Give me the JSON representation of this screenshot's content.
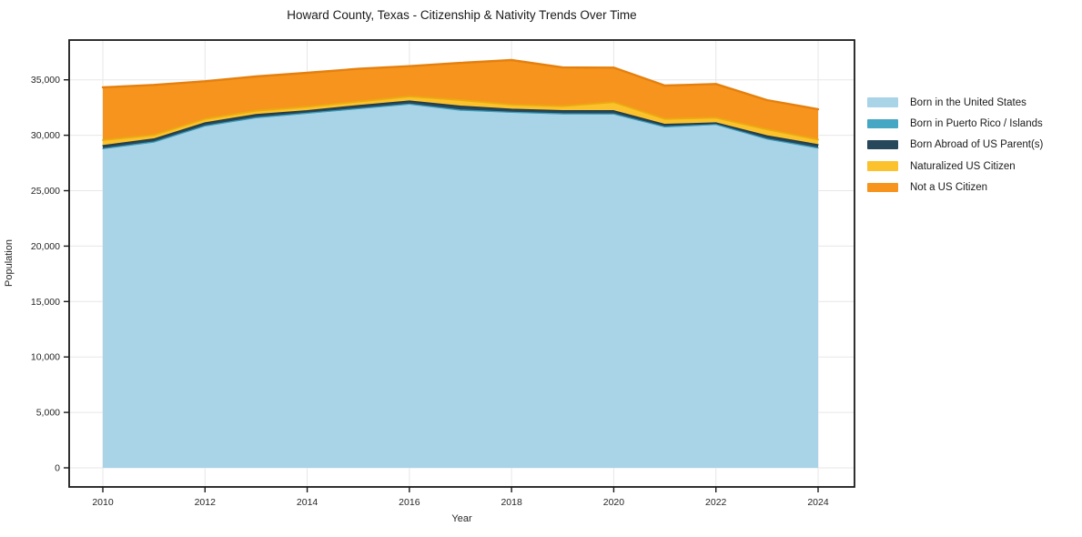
{
  "title": "Howard County, Texas - Citizenship & Nativity Trends Over Time",
  "chart_data": {
    "type": "area",
    "stacked": true,
    "title": "Howard County, Texas - Citizenship & Nativity Trends Over Time",
    "xlabel": "Year",
    "ylabel": "Population",
    "x": [
      2010,
      2011,
      2012,
      2013,
      2014,
      2015,
      2016,
      2017,
      2018,
      2019,
      2020,
      2021,
      2022,
      2023,
      2024
    ],
    "series": [
      {
        "name": "Born in the United States",
        "color": "#A9D3E7",
        "edge": null,
        "edge_width": 0,
        "values": [
          28740,
          29330,
          30790,
          31530,
          31940,
          32350,
          32760,
          32210,
          32020,
          31880,
          31860,
          30710,
          30930,
          29610,
          28790
        ]
      },
      {
        "name": "Born in Puerto Rico / Islands",
        "color": "#45A7C4",
        "edge": "#3D9CB9",
        "edge_width": 1.2,
        "values": [
          50,
          60,
          55,
          60,
          45,
          55,
          60,
          70,
          55,
          60,
          60,
          45,
          35,
          55,
          60
        ]
      },
      {
        "name": "Born Abroad of US Parent(s)",
        "color": "#26485A",
        "edge": "#1E3C4C",
        "edge_width": 1.3,
        "values": [
          270,
          270,
          275,
          270,
          225,
          275,
          270,
          340,
          275,
          270,
          290,
          225,
          155,
          275,
          300
        ]
      },
      {
        "name": "Naturalized US Citizen",
        "color": "#FCC22D",
        "edge": "#EAAB10",
        "edge_width": 1.8,
        "values": [
          500,
          360,
          350,
          350,
          360,
          350,
          410,
          550,
          410,
          410,
          770,
          490,
          460,
          580,
          460
        ]
      },
      {
        "name": "Not a US Citizen",
        "color": "#F7941E",
        "edge": "#E5800D",
        "edge_width": 2.4,
        "values": [
          4760,
          4520,
          3400,
          3090,
          3060,
          2960,
          2730,
          3360,
          4020,
          3500,
          3120,
          3010,
          3040,
          2650,
          2740
        ]
      }
    ],
    "ylim": [
      0,
      35000
    ],
    "yticks": {
      "values": [
        0,
        5000,
        10000,
        15000,
        20000,
        25000,
        30000,
        35000
      ],
      "labels": [
        "0",
        "5,000",
        "10,000",
        "15,000",
        "20,000",
        "25,000",
        "30,000",
        "35,000"
      ]
    },
    "xticks": {
      "values": [
        2010,
        2012,
        2014,
        2016,
        2018,
        2020,
        2022,
        2024
      ],
      "labels": [
        "2010",
        "2012",
        "2014",
        "2016",
        "2018",
        "2020",
        "2022",
        "2024"
      ]
    },
    "grid": true,
    "grid_color": "#E7E7E7",
    "border_color": "#1A1A1A",
    "legend_position": "right"
  },
  "legend": {
    "items": [
      {
        "label": "Born in the United States"
      },
      {
        "label": "Born in Puerto Rico / Islands"
      },
      {
        "label": "Born Abroad of US Parent(s)"
      },
      {
        "label": "Naturalized US Citizen"
      },
      {
        "label": "Not a US Citizen"
      }
    ]
  }
}
